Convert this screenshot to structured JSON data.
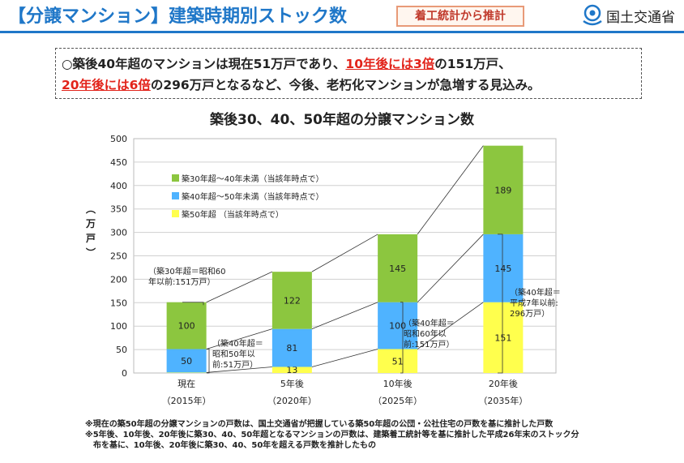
{
  "header": {
    "title": "【分譲マンション】建築時期別ストック数",
    "badge": "着工統計から推計",
    "ministry": "国土交通省"
  },
  "summary": {
    "l1a": "○築後40年超のマンションは現在51万戸であり、",
    "l1b": "10年後には3倍",
    "l1c": "の151万戸、",
    "l2a": "20年後には6倍",
    "l2b": "の296万戸となるなど、今後、老朽化マンションが急増する見込み。"
  },
  "notes": {
    "n1": "※現在の築50年超の分譲マンションの戸数は、国土交通省が把握している築50年超の公団・公社住宅の戸数を基に推計した戸数",
    "n2": "※5年後、10年後、20年後に築30、40、50年超となるマンションの戸数は、建築着工統計等を基に推計した平成26年末のストック分",
    "n3": "布を基に、10年後、20年後に築30、40、50年を超える戸数を推計したもの"
  },
  "chart_data": {
    "type": "bar",
    "stacked": true,
    "title": "築後30、40、50年超の分譲マンション数",
    "ylabel": "（万戸）",
    "ylim": [
      0,
      500
    ],
    "yticks": [
      0,
      50,
      100,
      150,
      200,
      250,
      300,
      350,
      400,
      450,
      500
    ],
    "grid": true,
    "legend_position": "top-left",
    "categories": [
      "現在",
      "5年後",
      "10年後",
      "20年後"
    ],
    "categories_sub": [
      "（2015年）",
      "（2020年）",
      "（2025年）",
      "（2035年）"
    ],
    "series": [
      {
        "name": "築50年超 （当該年時点で）",
        "color": "#ffff4d",
        "values": [
          1,
          13,
          51,
          151
        ]
      },
      {
        "name": "築40年超～50年未満（当該年時点で）",
        "color": "#4fb3ff",
        "values": [
          50,
          81,
          100,
          145
        ]
      },
      {
        "name": "築30年超～40年未満（当該年時点で）",
        "color": "#8cc63f",
        "values": [
          100,
          122,
          145,
          189
        ]
      }
    ],
    "annotations": {
      "a1": [
        "（築30年超＝昭和60",
        "年以前:151万戸）"
      ],
      "a2": [
        "（築40年超＝",
        "昭和50年以",
        "前:51万戸）"
      ],
      "a3": [
        "（築40年超＝",
        "昭和60年以",
        "前:151万戸）"
      ],
      "a4": [
        "（築40年超＝",
        "平成7年以前:",
        "296万戸）"
      ]
    }
  }
}
